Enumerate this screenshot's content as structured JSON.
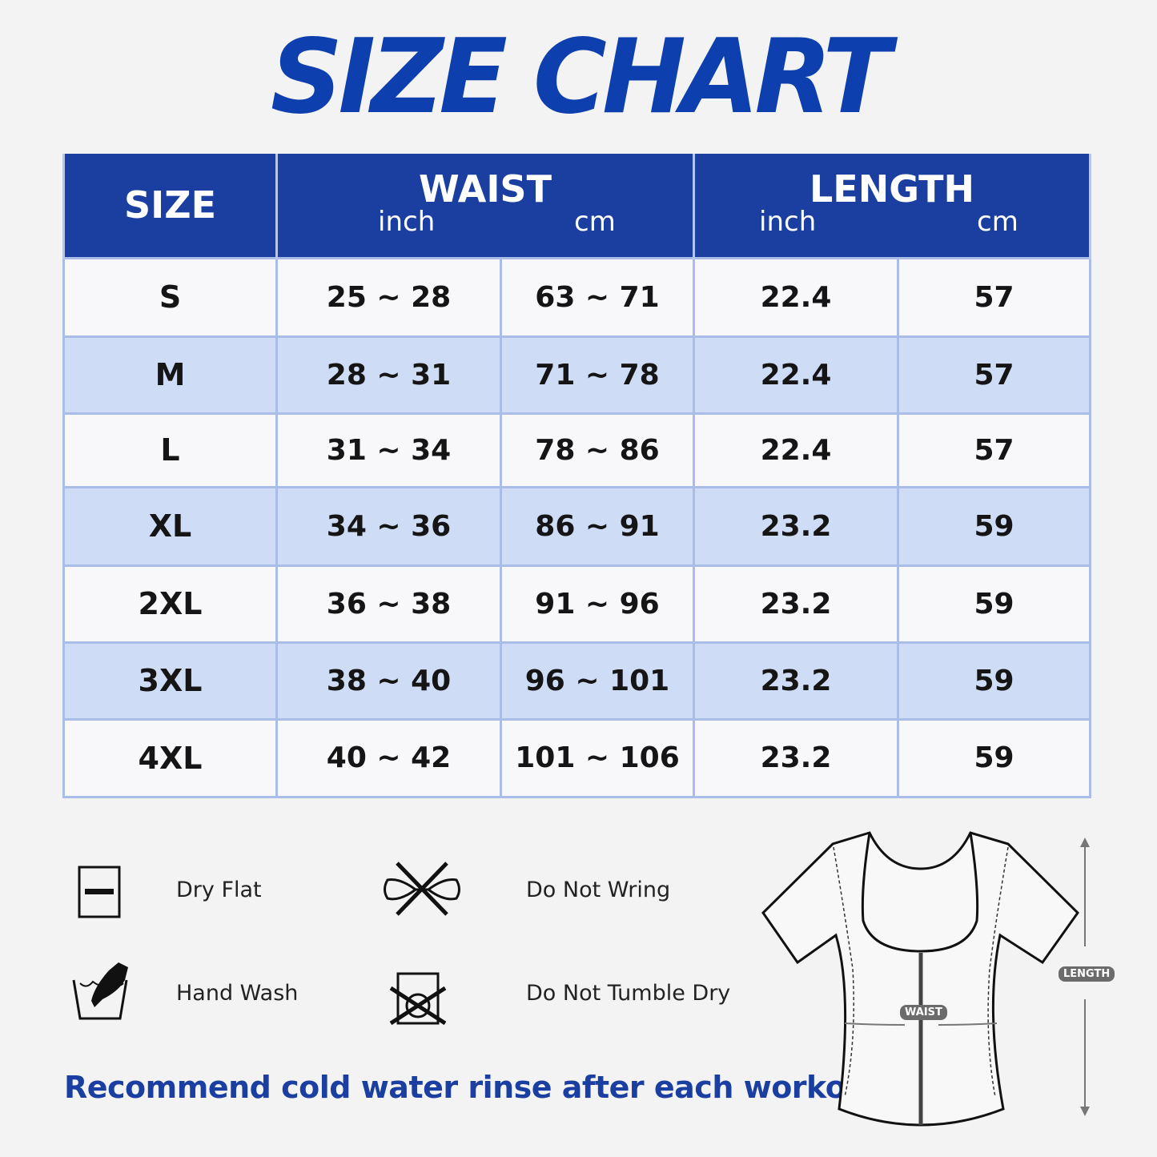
{
  "title": "SIZE CHART",
  "table": {
    "headers": {
      "size": "SIZE",
      "waist": "WAIST",
      "length": "LENGTH",
      "inch": "inch",
      "cm": "cm"
    },
    "rows": [
      {
        "size": "S",
        "waist_inch": "25 ~ 28",
        "waist_cm": "63 ~ 71",
        "length_inch": "22.4",
        "length_cm": "57"
      },
      {
        "size": "M",
        "waist_inch": "28 ~ 31",
        "waist_cm": "71 ~ 78",
        "length_inch": "22.4",
        "length_cm": "57"
      },
      {
        "size": "L",
        "waist_inch": "31 ~ 34",
        "waist_cm": "78 ~ 86",
        "length_inch": "22.4",
        "length_cm": "57"
      },
      {
        "size": "XL",
        "waist_inch": "34 ~ 36",
        "waist_cm": "86 ~ 91",
        "length_inch": "23.2",
        "length_cm": "59"
      },
      {
        "size": "2XL",
        "waist_inch": "36 ~ 38",
        "waist_cm": "91 ~ 96",
        "length_inch": "23.2",
        "length_cm": "59"
      },
      {
        "size": "3XL",
        "waist_inch": "38 ~ 40",
        "waist_cm": "96 ~ 101",
        "length_inch": "23.2",
        "length_cm": "59"
      },
      {
        "size": "4XL",
        "waist_inch": "40 ~ 42",
        "waist_cm": "101 ~ 106",
        "length_inch": "23.2",
        "length_cm": "59"
      }
    ]
  },
  "care": [
    {
      "icon": "dry-flat-icon",
      "label": "Dry Flat"
    },
    {
      "icon": "do-not-wring-icon",
      "label": "Do Not Wring"
    },
    {
      "icon": "hand-wash-icon",
      "label": "Hand Wash"
    },
    {
      "icon": "do-not-tumble-dry-icon",
      "label": "Do Not Tumble Dry"
    }
  ],
  "note": "Recommend cold water rinse after each workout.",
  "diagram": {
    "waist_label": "WAIST",
    "length_label": "LENGTH"
  },
  "colors": {
    "header": "#1a3fa0",
    "alt_row": "#cfdcf5",
    "title": "#0d3fae"
  }
}
